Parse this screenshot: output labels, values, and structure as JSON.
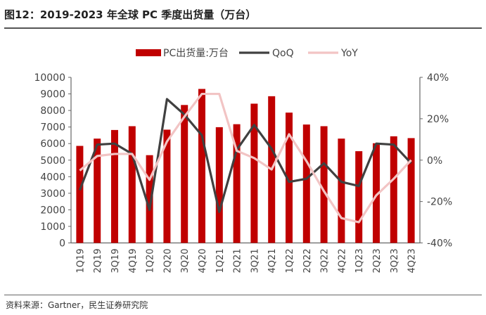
{
  "figure": {
    "title": "图12：2019-2023 年全球 PC 季度出货量（万台）",
    "source": "资料来源：Gartner，民生证券研究院"
  },
  "chart_data": {
    "type": "bar+line",
    "title": "",
    "categories": [
      "1Q19",
      "2Q19",
      "3Q19",
      "4Q19",
      "1Q20",
      "2Q20",
      "3Q20",
      "4Q20",
      "1Q21",
      "2Q21",
      "3Q21",
      "4Q21",
      "1Q22",
      "2Q22",
      "3Q22",
      "4Q22",
      "1Q23",
      "2Q23",
      "3Q23",
      "4Q23"
    ],
    "series": [
      {
        "name": "PC出货量:万台",
        "type": "bar",
        "axis": "left",
        "color": "#C00000",
        "values": [
          5860,
          6300,
          6820,
          7050,
          5300,
          6840,
          8330,
          9300,
          6990,
          7170,
          8410,
          8860,
          7870,
          7150,
          7050,
          6300,
          5540,
          6020,
          6440,
          6330
        ]
      },
      {
        "name": "QoQ",
        "type": "line",
        "axis": "right",
        "color": "#404040",
        "values": [
          -14.5,
          7.5,
          8.0,
          3.0,
          -24.0,
          29.5,
          22.0,
          12.0,
          -25.0,
          5.0,
          17.0,
          5.5,
          -10.5,
          -9.0,
          -1.5,
          -10.5,
          -12.5,
          8.0,
          7.5,
          -1.5
        ]
      },
      {
        "name": "YoY",
        "type": "line",
        "axis": "right",
        "color": "#F2C4C4",
        "values": [
          -5.0,
          2.0,
          3.0,
          3.0,
          -9.5,
          9.0,
          21.0,
          32.0,
          32.0,
          4.5,
          1.0,
          -4.5,
          12.5,
          -0.5,
          -15.0,
          -28.0,
          -30.0,
          -17.0,
          -9.0,
          0.0
        ]
      }
    ],
    "left_axis": {
      "min": 0,
      "max": 10000,
      "ticks": [
        "0",
        "1000",
        "2000",
        "3000",
        "4000",
        "5000",
        "6000",
        "7000",
        "8000",
        "9000",
        "10000"
      ]
    },
    "right_axis": {
      "min": -40,
      "max": 40,
      "unit": "%",
      "ticks": [
        "-40%",
        "-20%",
        "0%",
        "20%",
        "40%"
      ]
    },
    "grid": false,
    "legend": "top"
  }
}
